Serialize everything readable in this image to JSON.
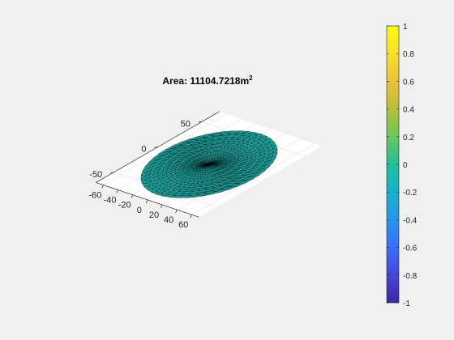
{
  "chart_data": {
    "type": "surface",
    "title": {
      "prefix": "Area: ",
      "value": "11104.7218",
      "unit": "m",
      "unit_exponent": "2"
    },
    "description": "Triangulated disc mesh with uniform teal color",
    "mesh_color": "#1fa59e",
    "edge_color": "#000000",
    "disc": {
      "radius": 59.45,
      "rings": 16,
      "spokes": 48,
      "center": [
        0,
        0,
        0
      ]
    },
    "area_value": 11104.7218,
    "x_axis": {
      "ticks": [
        -60,
        -40,
        -20,
        0,
        20,
        40,
        60
      ],
      "tick_labels": [
        "-60",
        "-40",
        "-20",
        "0",
        "20",
        "40",
        "60"
      ],
      "lim": [
        -70,
        70
      ]
    },
    "y_axis": {
      "ticks": [
        -50,
        0,
        50
      ],
      "tick_labels": [
        "-50",
        "0",
        "50"
      ],
      "lim": [
        -70,
        70
      ]
    },
    "colorbar": {
      "lim": [
        -1,
        1
      ],
      "ticks": [
        1,
        0.8,
        0.6,
        0.4,
        0.2,
        0,
        -0.2,
        -0.4,
        -0.6,
        -0.8,
        -1
      ],
      "tick_labels": [
        "1",
        "0.8",
        "0.6",
        "0.4",
        "0.2",
        "0",
        "-0.2",
        "-0.4",
        "-0.6",
        "-0.8",
        "-1"
      ],
      "colormap": "parula",
      "colormap_stops": [
        "#3e26a8",
        "#4745d9",
        "#3670f6",
        "#2696ea",
        "#16b2cc",
        "#21c097",
        "#67c75c",
        "#b9bf38",
        "#f0c037",
        "#f9e02a",
        "#f9fb0e"
      ]
    },
    "grid": true
  }
}
